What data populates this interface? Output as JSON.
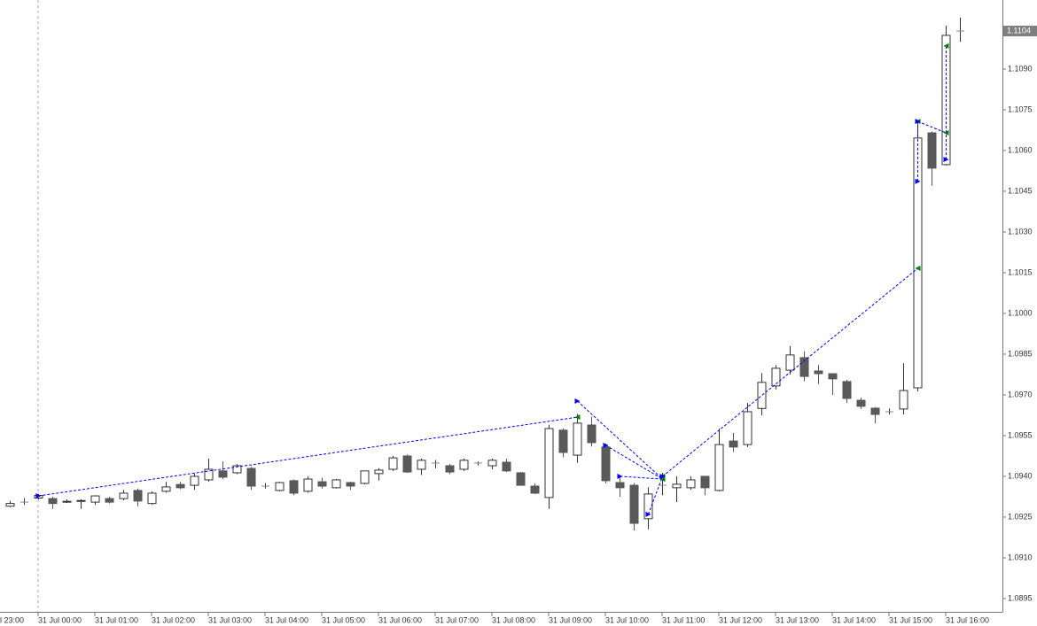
{
  "chart_data": {
    "type": "candlestick",
    "categories": [
      "l 23:00",
      null,
      null,
      null,
      "31 Jul 00:00",
      null,
      null,
      null,
      "31 Jul 01:00",
      null,
      null,
      null,
      "31 Jul 02:00",
      null,
      null,
      null,
      "31 Jul 03:00",
      null,
      null,
      null,
      "31 Jul 04:00",
      null,
      null,
      null,
      "31 Jul 05:00",
      null,
      null,
      null,
      "31 Jul 06:00",
      null,
      null,
      null,
      "31 Jul 07:00",
      null,
      null,
      null,
      "31 Jul 08:00",
      null,
      null,
      null,
      "31 Jul 09:00",
      null,
      null,
      null,
      "31 Jul 10:00",
      null,
      null,
      null,
      "31 Jul 11:00",
      null,
      null,
      null,
      "31 Jul 12:00",
      null,
      null,
      null,
      "31 Jul 13:00",
      null,
      null,
      null,
      "31 Jul 14:00",
      null,
      null,
      null,
      "31 Jul 15:00",
      null,
      null,
      null,
      "31 Jul 16:00",
      null
    ],
    "open": [
      null,
      null,
      1.0929,
      1.09305,
      1.0932,
      1.09318,
      1.09307,
      1.0931,
      1.09305,
      1.09318,
      1.09318,
      1.09348,
      1.093,
      1.09345,
      1.0937,
      1.09367,
      1.09387,
      1.0942,
      1.09413,
      1.09429,
      1.09364,
      1.09348,
      1.09384,
      1.09345,
      1.0938,
      1.09358,
      1.09377,
      1.09374,
      1.0941,
      1.09426,
      1.09475,
      1.09426,
      1.09449,
      1.09439,
      1.09426,
      1.09449,
      1.09439,
      1.09452,
      1.09413,
      1.09364,
      1.09322,
      1.0957,
      1.09478,
      1.09589,
      1.09508,
      1.09377,
      1.09367,
      1.09244,
      1.09367,
      1.09358,
      1.09358,
      1.094,
      1.09348,
      1.0953,
      1.09517,
      1.0965,
      1.09733,
      1.09791,
      1.09837,
      1.09788,
      1.09778,
      1.09749,
      1.0968,
      1.09651,
      1.09638,
      1.09648,
      1.09726,
      1.10665,
      1.10548,
      1.1104
    ],
    "high": [
      null,
      null,
      1.0931,
      1.0932,
      1.09335,
      1.09325,
      1.09315,
      1.09315,
      1.0933,
      1.09325,
      1.0935,
      1.09355,
      1.09345,
      1.0938,
      1.0938,
      1.0941,
      1.09465,
      1.09455,
      1.09445,
      1.09435,
      1.09375,
      1.0938,
      1.09388,
      1.094,
      1.09395,
      1.0939,
      1.0938,
      1.0942,
      1.0943,
      1.09475,
      1.0948,
      1.09465,
      1.0946,
      1.09445,
      1.09465,
      1.09455,
      1.09465,
      1.09465,
      1.09416,
      1.09374,
      1.0959,
      1.09576,
      1.0963,
      1.0962,
      1.0952,
      1.09395,
      1.09375,
      1.0936,
      1.09413,
      1.094,
      1.094,
      1.094,
      1.09576,
      1.0956,
      1.0967,
      1.0978,
      1.0981,
      1.0988,
      1.0986,
      1.0981,
      1.09778,
      1.09755,
      1.0969,
      1.09655,
      1.0965,
      1.09817,
      1.107,
      1.1067,
      1.1106,
      1.1109
    ],
    "low": [
      null,
      null,
      1.09287,
      1.09295,
      1.09315,
      1.0928,
      1.09302,
      1.0928,
      1.09295,
      1.093,
      1.09312,
      1.0929,
      1.09295,
      1.0934,
      1.09352,
      1.0935,
      1.0938,
      1.0939,
      1.09408,
      1.0935,
      1.09355,
      1.09345,
      1.0933,
      1.0934,
      1.09355,
      1.09355,
      1.0935,
      1.0937,
      1.09385,
      1.0942,
      1.09413,
      1.09405,
      1.0943,
      1.09408,
      1.0942,
      1.0944,
      1.09426,
      1.09416,
      1.09367,
      1.09335,
      1.0928,
      1.0947,
      1.0945,
      1.0951,
      1.09374,
      1.09325,
      1.092,
      1.09205,
      1.0933,
      1.09305,
      1.0935,
      1.0933,
      1.09345,
      1.0949,
      1.09508,
      1.09625,
      1.0972,
      1.09775,
      1.0975,
      1.0974,
      1.097,
      1.0967,
      1.09648,
      1.09595,
      1.09628,
      1.09628,
      1.09713,
      1.1047,
      1.10545,
      1.11
    ],
    "close": [
      null,
      null,
      1.093,
      1.09305,
      1.0933,
      1.093,
      1.09308,
      1.09311,
      1.09328,
      1.09305,
      1.09338,
      1.09309,
      1.09338,
      1.09361,
      1.09358,
      1.094,
      1.09426,
      1.09397,
      1.09439,
      1.09364,
      1.09364,
      1.09377,
      1.09338,
      1.0939,
      1.09364,
      1.09387,
      1.09364,
      1.0942,
      1.09423,
      1.09468,
      1.09416,
      1.09459,
      1.09449,
      1.09416,
      1.09459,
      1.09449,
      1.09459,
      1.0942,
      1.09367,
      1.09338,
      1.09576,
      1.09488,
      1.09596,
      1.09524,
      1.09384,
      1.09358,
      1.09227,
      1.09335,
      1.09367,
      1.09371,
      1.09387,
      1.09358,
      1.09517,
      1.09508,
      1.09638,
      1.09746,
      1.09798,
      1.09847,
      1.09768,
      1.09778,
      1.09759,
      1.09687,
      1.09658,
      1.09628,
      1.09638,
      1.09716,
      1.10646,
      1.10535,
      1.11024,
      1.1104
    ],
    "bull_color": "#ffffff",
    "bear_color": "#5a5a5a",
    "ylim": [
      1.089,
      1.1115
    ],
    "yticks": [
      1.0895,
      {
        "value": 1.091,
        "label": "1.0910"
      },
      1.0925,
      {
        "value": 1.094,
        "label": "1.0940"
      },
      1.0955,
      {
        "value": 1.097,
        "label": "1.0970"
      },
      1.0985,
      {
        "value": 1.1,
        "label": "1.1000"
      },
      1.1015,
      {
        "value": 1.103,
        "label": "1.1030"
      },
      1.1045,
      {
        "value": 1.106,
        "label": "1.1060"
      },
      1.1075,
      {
        "value": 1.109,
        "label": "1.1090"
      }
    ],
    "current_price": 1.1104,
    "trade_color": "#0000ff",
    "exit_color": "#008000",
    "trades": [
      {
        "x": [
          4,
          42
        ],
        "y": [
          1.09328,
          1.09618
        ]
      },
      {
        "x": [
          42,
          48
        ],
        "y": [
          1.09677,
          1.0939
        ]
      },
      {
        "x": [
          44,
          48
        ],
        "y": [
          1.09514,
          1.0939
        ]
      },
      {
        "x": [
          45,
          48
        ],
        "y": [
          1.094,
          1.0939
        ]
      },
      {
        "x": [
          47,
          48
        ],
        "y": [
          1.0926,
          1.094
        ]
      },
      {
        "x": [
          48,
          66
        ],
        "y": [
          1.094,
          1.10166
        ]
      },
      {
        "x": [
          66,
          66
        ],
        "y": [
          1.10486,
          1.10707
        ]
      },
      {
        "x": [
          66,
          68
        ],
        "y": [
          1.10707,
          1.10665
        ]
      },
      {
        "x": [
          68,
          68
        ],
        "y": [
          1.10567,
          1.10985
        ]
      }
    ]
  }
}
